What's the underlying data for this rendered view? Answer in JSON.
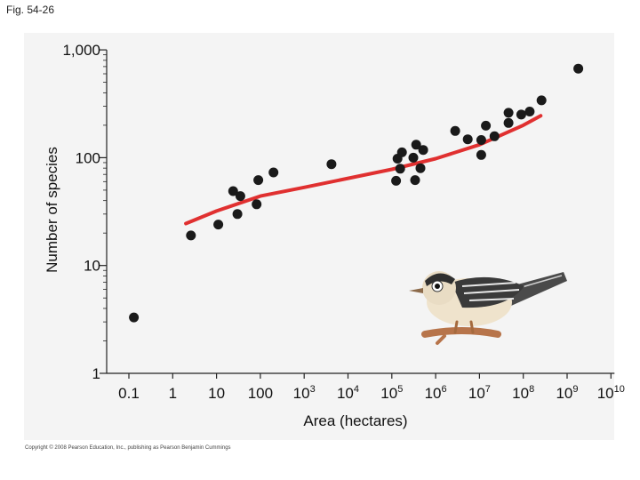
{
  "figure_label": "Fig. 54-26",
  "copyright": "Copyright © 2008 Pearson Education, Inc., publishing as Pearson Benjamin Cummings",
  "colors": {
    "points": "#1a1a1a",
    "trend": "#e03030",
    "axis": "#222222",
    "panel": "#f4f4f4"
  },
  "illustration": "bird-on-branch",
  "chart_data": {
    "type": "scatter",
    "xlabel": "Area (hectares)",
    "ylabel": "Number of species",
    "x_scale": "log",
    "y_scale": "log",
    "xlim": [
      0.1,
      10000000000
    ],
    "ylim": [
      1,
      1000
    ],
    "grid": false,
    "x_ticks": [
      {
        "value": 0.1,
        "base": "0.1",
        "exp": ""
      },
      {
        "value": 1,
        "base": "1",
        "exp": ""
      },
      {
        "value": 10,
        "base": "10",
        "exp": ""
      },
      {
        "value": 100,
        "base": "100",
        "exp": ""
      },
      {
        "value": 1000,
        "base": "10",
        "exp": "3"
      },
      {
        "value": 10000,
        "base": "10",
        "exp": "4"
      },
      {
        "value": 100000,
        "base": "10",
        "exp": "5"
      },
      {
        "value": 1000000,
        "base": "10",
        "exp": "6"
      },
      {
        "value": 10000000,
        "base": "10",
        "exp": "7"
      },
      {
        "value": 100000000,
        "base": "10",
        "exp": "8"
      },
      {
        "value": 1000000000,
        "base": "10",
        "exp": "9"
      },
      {
        "value": 10000000000,
        "base": "10",
        "exp": "10"
      }
    ],
    "y_ticks": [
      {
        "value": 1,
        "label": "1"
      },
      {
        "value": 10,
        "label": "10"
      },
      {
        "value": 100,
        "label": "100"
      },
      {
        "value": 1000,
        "label": "1,000"
      }
    ],
    "points": [
      {
        "x": 0.13,
        "y": 3.3
      },
      {
        "x": 2.6,
        "y": 19
      },
      {
        "x": 11,
        "y": 24
      },
      {
        "x": 24,
        "y": 49
      },
      {
        "x": 30,
        "y": 30
      },
      {
        "x": 35,
        "y": 44
      },
      {
        "x": 82,
        "y": 37
      },
      {
        "x": 90,
        "y": 62
      },
      {
        "x": 200,
        "y": 73
      },
      {
        "x": 4200,
        "y": 87
      },
      {
        "x": 125000,
        "y": 61
      },
      {
        "x": 135000,
        "y": 98
      },
      {
        "x": 155000,
        "y": 79
      },
      {
        "x": 170000,
        "y": 112
      },
      {
        "x": 310000,
        "y": 100
      },
      {
        "x": 340000,
        "y": 62
      },
      {
        "x": 360000,
        "y": 132
      },
      {
        "x": 450000,
        "y": 80
      },
      {
        "x": 520000,
        "y": 118
      },
      {
        "x": 2800000,
        "y": 177
      },
      {
        "x": 5400000,
        "y": 148
      },
      {
        "x": 11000000,
        "y": 146
      },
      {
        "x": 11000000,
        "y": 106
      },
      {
        "x": 14000000,
        "y": 198
      },
      {
        "x": 22000000,
        "y": 158
      },
      {
        "x": 46000000,
        "y": 210
      },
      {
        "x": 46000000,
        "y": 261
      },
      {
        "x": 90000000,
        "y": 251
      },
      {
        "x": 140000000,
        "y": 268
      },
      {
        "x": 260000000,
        "y": 340
      },
      {
        "x": 1800000000,
        "y": 670
      }
    ],
    "trend": {
      "type": "line",
      "points": [
        {
          "x": 2.0,
          "y": 24.5
        },
        {
          "x": 10,
          "y": 32
        },
        {
          "x": 100,
          "y": 44
        },
        {
          "x": 1000,
          "y": 53
        },
        {
          "x": 100000,
          "y": 78
        },
        {
          "x": 1000000,
          "y": 98
        },
        {
          "x": 10000000,
          "y": 132
        },
        {
          "x": 100000000,
          "y": 200
        },
        {
          "x": 250000000,
          "y": 245
        }
      ]
    }
  }
}
